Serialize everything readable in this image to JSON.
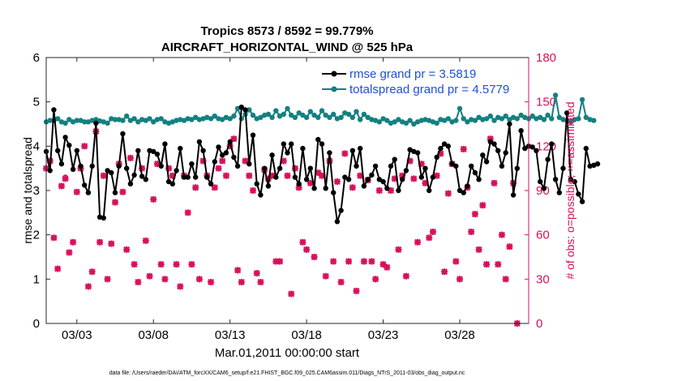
{
  "chart_data": {
    "type": "line",
    "title_line1": "Tropics 8573 / 8592 = 99.779%",
    "title_line2": "AIRCRAFT_HORIZONTAL_WIND @ 525 hPa",
    "ylabel_left": "rmse and totalspread",
    "ylabel_right": "# of obs: o=possible; ×=assimilated",
    "xlabel": "Mar.01,2011 00:00:00 start",
    "footer": "data file: /Users/raeder/DAI/ATM_forcXX/CAM6_setup/f.e21.FHIST_BGC.f09_025.CAM6assim.011/Diags_NTrS_2011-03/obs_diag_output.nc",
    "ylim_left": [
      0,
      6
    ],
    "ylim_right": [
      0,
      180
    ],
    "xlim_days": [
      1,
      32.5
    ],
    "yticks_left": [
      "0",
      "1",
      "2",
      "3",
      "4",
      "5",
      "6"
    ],
    "yticks_right": [
      "0",
      "30",
      "60",
      "90",
      "120",
      "150",
      "180"
    ],
    "xticks": [
      {
        "day": 3,
        "label": "03/03"
      },
      {
        "day": 8,
        "label": "03/08"
      },
      {
        "day": 13,
        "label": "03/13"
      },
      {
        "day": 18,
        "label": "03/18"
      },
      {
        "day": 23,
        "label": "03/23"
      },
      {
        "day": 28,
        "label": "03/28"
      }
    ],
    "colors": {
      "rmse": "#000000",
      "totalspread": "#148080",
      "obs": "#d6115c",
      "legend_text": "#1f4fd6"
    },
    "series": [
      {
        "name": "rmse grand pr = 3.5819",
        "values": [
          3.88,
          3.45,
          4.82,
          3.9,
          3.6,
          4.2,
          4.02,
          3.48,
          3.9,
          3.55,
          3.12,
          2.95,
          3.55,
          4.52,
          2.4,
          2.38,
          3.45,
          3.4,
          2.95,
          3.55,
          4.28,
          3.5,
          3.15,
          3.35,
          3.9,
          3.32,
          3.25,
          3.9,
          3.88,
          3.82,
          3.55,
          4.05,
          3.2,
          3.15,
          3.45,
          3.95,
          3.3,
          3.3,
          3.6,
          3.3,
          4.1,
          3.9,
          3.3,
          3.15,
          3.65,
          3.98,
          3.8,
          3.85,
          4.1,
          3.75,
          3.55,
          4.88,
          4.82,
          3.6,
          4.25,
          3.15,
          2.9,
          3.5,
          3.1,
          3.8,
          3.3,
          3.5,
          4.05,
          3.85,
          4.05,
          3.3,
          3.15,
          3.95,
          3.25,
          3.5,
          3.05,
          4.15,
          4.05,
          3.05,
          3.85,
          2.95,
          2.3,
          2.55,
          3.3,
          3.25,
          3.9,
          3.55,
          3.95,
          3.1,
          3.25,
          3.35,
          3.55,
          3.25,
          3.2,
          3.05,
          3.55,
          3.7,
          3.0,
          3.25,
          3.45,
          3.92,
          3.88,
          3.85,
          3.3,
          3.5,
          3.0,
          3.3,
          3.75,
          3.95,
          4.05,
          4.0,
          3.6,
          3.55,
          3.0,
          2.95,
          3.1,
          3.55,
          3.4,
          3.25,
          3.8,
          3.65,
          4.1,
          4.05,
          3.9,
          3.55,
          3.85,
          4.5,
          2.9,
          3.5,
          4.35,
          3.95,
          4.0,
          3.98,
          3.9,
          3.2,
          3.05,
          3.7,
          4.05,
          3.25,
          2.95,
          3.5,
          4.75,
          3.25,
          3.2,
          2.92,
          2.75,
          3.95,
          3.55,
          3.57,
          3.6
        ]
      },
      {
        "name": "totalspread grand pr = 4.5779",
        "values": [
          4.55,
          4.58,
          4.58,
          4.62,
          4.55,
          4.52,
          4.6,
          4.55,
          4.58,
          4.58,
          4.55,
          4.55,
          4.58,
          4.6,
          4.57,
          4.55,
          4.52,
          4.62,
          4.6,
          4.6,
          4.58,
          4.68,
          4.58,
          4.62,
          4.55,
          4.6,
          4.58,
          4.62,
          4.55,
          4.6,
          4.62,
          4.55,
          4.52,
          4.55,
          4.58,
          4.6,
          4.58,
          4.62,
          4.6,
          4.65,
          4.6,
          4.62,
          4.65,
          4.62,
          4.68,
          4.62,
          4.6,
          4.65,
          4.62,
          4.68,
          4.85,
          4.62,
          4.72,
          4.82,
          4.7,
          4.62,
          4.65,
          4.7,
          4.72,
          4.65,
          4.8,
          4.68,
          4.72,
          4.85,
          4.7,
          4.65,
          4.75,
          4.7,
          4.65,
          4.78,
          4.7,
          4.65,
          4.8,
          4.7,
          4.65,
          4.72,
          4.62,
          4.65,
          4.75,
          4.72,
          4.65,
          4.78,
          4.6,
          4.72,
          4.65,
          4.6,
          4.58,
          4.55,
          4.62,
          4.58,
          4.52,
          4.55,
          4.6,
          4.55,
          4.52,
          4.58,
          4.5,
          4.55,
          4.58,
          4.6,
          4.58,
          4.55,
          4.52,
          4.6,
          4.58,
          4.62,
          4.55,
          4.58,
          4.85,
          4.62,
          4.55,
          4.6,
          4.58,
          4.65,
          4.6,
          4.62,
          4.68,
          4.58,
          4.65,
          4.62,
          4.68,
          4.6,
          4.65,
          4.62,
          4.7,
          4.65,
          4.62,
          4.68,
          4.62,
          4.65,
          4.6,
          4.7,
          4.62,
          5.15,
          4.65,
          4.6,
          4.58,
          4.55,
          4.6,
          4.62,
          5.05,
          4.65,
          4.6,
          4.58
        ]
      }
    ],
    "obs_assimilated": [
      {
        "day": 1.0,
        "n": 105
      },
      {
        "day": 1.25,
        "n": 110
      },
      {
        "day": 1.5,
        "n": 58
      },
      {
        "day": 1.75,
        "n": 37
      },
      {
        "day": 2.0,
        "n": 93
      },
      {
        "day": 2.25,
        "n": 98
      },
      {
        "day": 2.5,
        "n": 48
      },
      {
        "day": 2.75,
        "n": 55
      },
      {
        "day": 3.0,
        "n": 89
      },
      {
        "day": 3.25,
        "n": 105
      },
      {
        "day": 3.5,
        "n": 120
      },
      {
        "day": 3.75,
        "n": 25
      },
      {
        "day": 4.0,
        "n": 35
      },
      {
        "day": 4.25,
        "n": 130
      },
      {
        "day": 4.5,
        "n": 55
      },
      {
        "day": 4.75,
        "n": 100
      },
      {
        "day": 5.0,
        "n": 30
      },
      {
        "day": 5.25,
        "n": 54
      },
      {
        "day": 5.5,
        "n": 82
      },
      {
        "day": 5.75,
        "n": 108
      },
      {
        "day": 6.0,
        "n": 89
      },
      {
        "day": 6.25,
        "n": 50
      },
      {
        "day": 6.5,
        "n": 112
      },
      {
        "day": 6.75,
        "n": 40
      },
      {
        "day": 7.0,
        "n": 28
      },
      {
        "day": 7.25,
        "n": 105
      },
      {
        "day": 7.5,
        "n": 56
      },
      {
        "day": 7.75,
        "n": 32
      },
      {
        "day": 8.0,
        "n": 84
      },
      {
        "day": 8.25,
        "n": 108
      },
      {
        "day": 8.5,
        "n": 40
      },
      {
        "day": 8.75,
        "n": 30
      },
      {
        "day": 9.0,
        "n": 105
      },
      {
        "day": 9.25,
        "n": 100
      },
      {
        "day": 9.5,
        "n": 40
      },
      {
        "day": 9.75,
        "n": 25
      },
      {
        "day": 10.0,
        "n": 100
      },
      {
        "day": 10.25,
        "n": 75
      },
      {
        "day": 10.5,
        "n": 40
      },
      {
        "day": 10.75,
        "n": 92
      },
      {
        "day": 11.0,
        "n": 30
      },
      {
        "day": 11.25,
        "n": 110
      },
      {
        "day": 11.5,
        "n": 100
      },
      {
        "day": 11.75,
        "n": 28
      },
      {
        "day": 12.0,
        "n": 92
      },
      {
        "day": 12.25,
        "n": 105
      },
      {
        "day": 12.5,
        "n": 110
      },
      {
        "day": 12.75,
        "n": 100
      },
      {
        "day": 13.0,
        "n": 120
      },
      {
        "day": 13.25,
        "n": 125
      },
      {
        "day": 13.5,
        "n": 36
      },
      {
        "day": 13.75,
        "n": 28
      },
      {
        "day": 14.0,
        "n": 110
      },
      {
        "day": 14.25,
        "n": 100
      },
      {
        "day": 14.5,
        "n": 90
      },
      {
        "day": 14.75,
        "n": 34
      },
      {
        "day": 15.0,
        "n": 28
      },
      {
        "day": 15.25,
        "n": 104
      },
      {
        "day": 15.5,
        "n": 98
      },
      {
        "day": 15.75,
        "n": 100
      },
      {
        "day": 16.0,
        "n": 42
      },
      {
        "day": 16.25,
        "n": 42
      },
      {
        "day": 16.5,
        "n": 110
      },
      {
        "day": 16.75,
        "n": 100
      },
      {
        "day": 17.0,
        "n": 20
      },
      {
        "day": 17.25,
        "n": 105
      },
      {
        "day": 17.5,
        "n": 92
      },
      {
        "day": 17.75,
        "n": 55
      },
      {
        "day": 18.0,
        "n": 50
      },
      {
        "day": 18.25,
        "n": 95
      },
      {
        "day": 18.5,
        "n": 45
      },
      {
        "day": 18.75,
        "n": 102
      },
      {
        "day": 19.0,
        "n": 100
      },
      {
        "day": 19.25,
        "n": 32
      },
      {
        "day": 19.5,
        "n": 110
      },
      {
        "day": 19.75,
        "n": 42
      },
      {
        "day": 20.0,
        "n": 96
      },
      {
        "day": 20.25,
        "n": 28
      },
      {
        "day": 20.5,
        "n": 115
      },
      {
        "day": 20.75,
        "n": 42
      },
      {
        "day": 21.0,
        "n": 92
      },
      {
        "day": 21.25,
        "n": 22
      },
      {
        "day": 21.5,
        "n": 100
      },
      {
        "day": 21.75,
        "n": 42
      },
      {
        "day": 22.0,
        "n": 97
      },
      {
        "day": 22.25,
        "n": 42
      },
      {
        "day": 22.5,
        "n": 30
      },
      {
        "day": 22.75,
        "n": 90
      },
      {
        "day": 23.0,
        "n": 40
      },
      {
        "day": 23.25,
        "n": 38
      },
      {
        "day": 23.5,
        "n": 90
      },
      {
        "day": 23.75,
        "n": 98
      },
      {
        "day": 24.0,
        "n": 50
      },
      {
        "day": 24.25,
        "n": 100
      },
      {
        "day": 24.5,
        "n": 32
      },
      {
        "day": 24.75,
        "n": 110
      },
      {
        "day": 25.0,
        "n": 98
      },
      {
        "day": 25.25,
        "n": 55
      },
      {
        "day": 25.5,
        "n": 108
      },
      {
        "day": 25.75,
        "n": 95
      },
      {
        "day": 26.0,
        "n": 58
      },
      {
        "day": 26.25,
        "n": 62
      },
      {
        "day": 26.5,
        "n": 100
      },
      {
        "day": 26.75,
        "n": 115
      },
      {
        "day": 27.0,
        "n": 35
      },
      {
        "day": 27.25,
        "n": 88
      },
      {
        "day": 27.5,
        "n": 108
      },
      {
        "day": 27.75,
        "n": 42
      },
      {
        "day": 28.0,
        "n": 30
      },
      {
        "day": 28.25,
        "n": 118
      },
      {
        "day": 28.5,
        "n": 92
      },
      {
        "day": 28.75,
        "n": 62
      },
      {
        "day": 29.0,
        "n": 74
      },
      {
        "day": 29.25,
        "n": 50
      },
      {
        "day": 29.5,
        "n": 80
      },
      {
        "day": 29.75,
        "n": 40
      },
      {
        "day": 30.0,
        "n": 125
      },
      {
        "day": 30.25,
        "n": 95
      },
      {
        "day": 30.5,
        "n": 40
      },
      {
        "day": 30.75,
        "n": 60
      },
      {
        "day": 31.0,
        "n": 30
      },
      {
        "day": 31.25,
        "n": 52
      },
      {
        "day": 31.5,
        "n": 95
      },
      {
        "day": 31.75,
        "n": 0
      }
    ],
    "obs_possible": [
      {
        "day": 2.25,
        "n": 93
      }
    ]
  }
}
